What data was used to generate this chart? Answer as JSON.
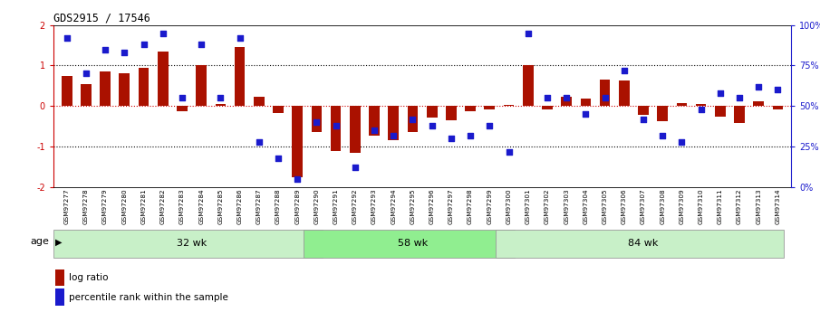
{
  "title": "GDS2915 / 17546",
  "samples": [
    "GSM97277",
    "GSM97278",
    "GSM97279",
    "GSM97280",
    "GSM97281",
    "GSM97282",
    "GSM97283",
    "GSM97284",
    "GSM97285",
    "GSM97286",
    "GSM97287",
    "GSM97288",
    "GSM97289",
    "GSM97290",
    "GSM97291",
    "GSM97292",
    "GSM97293",
    "GSM97294",
    "GSM97295",
    "GSM97296",
    "GSM97297",
    "GSM97298",
    "GSM97299",
    "GSM97300",
    "GSM97301",
    "GSM97302",
    "GSM97303",
    "GSM97304",
    "GSM97305",
    "GSM97306",
    "GSM97307",
    "GSM97308",
    "GSM97309",
    "GSM97310",
    "GSM97311",
    "GSM97312",
    "GSM97313",
    "GSM97314"
  ],
  "log_ratio": [
    0.75,
    0.55,
    0.85,
    0.82,
    0.95,
    1.35,
    -0.12,
    1.02,
    0.05,
    1.45,
    0.22,
    -0.18,
    -1.75,
    -0.65,
    -1.1,
    -1.15,
    -0.72,
    -0.85,
    -0.65,
    -0.28,
    -0.35,
    -0.12,
    -0.08,
    0.02,
    1.02,
    -0.08,
    0.22,
    0.18,
    0.65,
    0.62,
    -0.22,
    -0.38,
    0.08,
    0.05,
    -0.25,
    -0.42,
    0.12,
    -0.08
  ],
  "percentile": [
    92,
    70,
    85,
    83,
    88,
    95,
    55,
    88,
    55,
    92,
    28,
    18,
    5,
    40,
    38,
    12,
    35,
    32,
    42,
    38,
    30,
    32,
    38,
    22,
    95,
    55,
    55,
    45,
    55,
    72,
    42,
    32,
    28,
    48,
    58,
    55,
    62,
    60
  ],
  "groups": [
    {
      "label": "32 wk",
      "start": 0,
      "end": 13,
      "shade": "#c8f0c8"
    },
    {
      "label": "58 wk",
      "start": 13,
      "end": 23,
      "shade": "#90ee90"
    },
    {
      "label": "84 wk",
      "start": 23,
      "end": 37,
      "shade": "#c8f0c8"
    }
  ],
  "ylim": [
    -2,
    2
  ],
  "yticks_left": [
    -2,
    -1,
    0,
    1,
    2
  ],
  "yticks_right_vals": [
    0,
    25,
    50,
    75,
    100
  ],
  "yticks_right_labels": [
    "0%",
    "25%",
    "50%",
    "75%",
    "100%"
  ],
  "bar_color": "#aa1100",
  "dot_color": "#1a1acc",
  "age_label": "age",
  "legend_bar": "log ratio",
  "legend_dot": "percentile rank within the sample"
}
